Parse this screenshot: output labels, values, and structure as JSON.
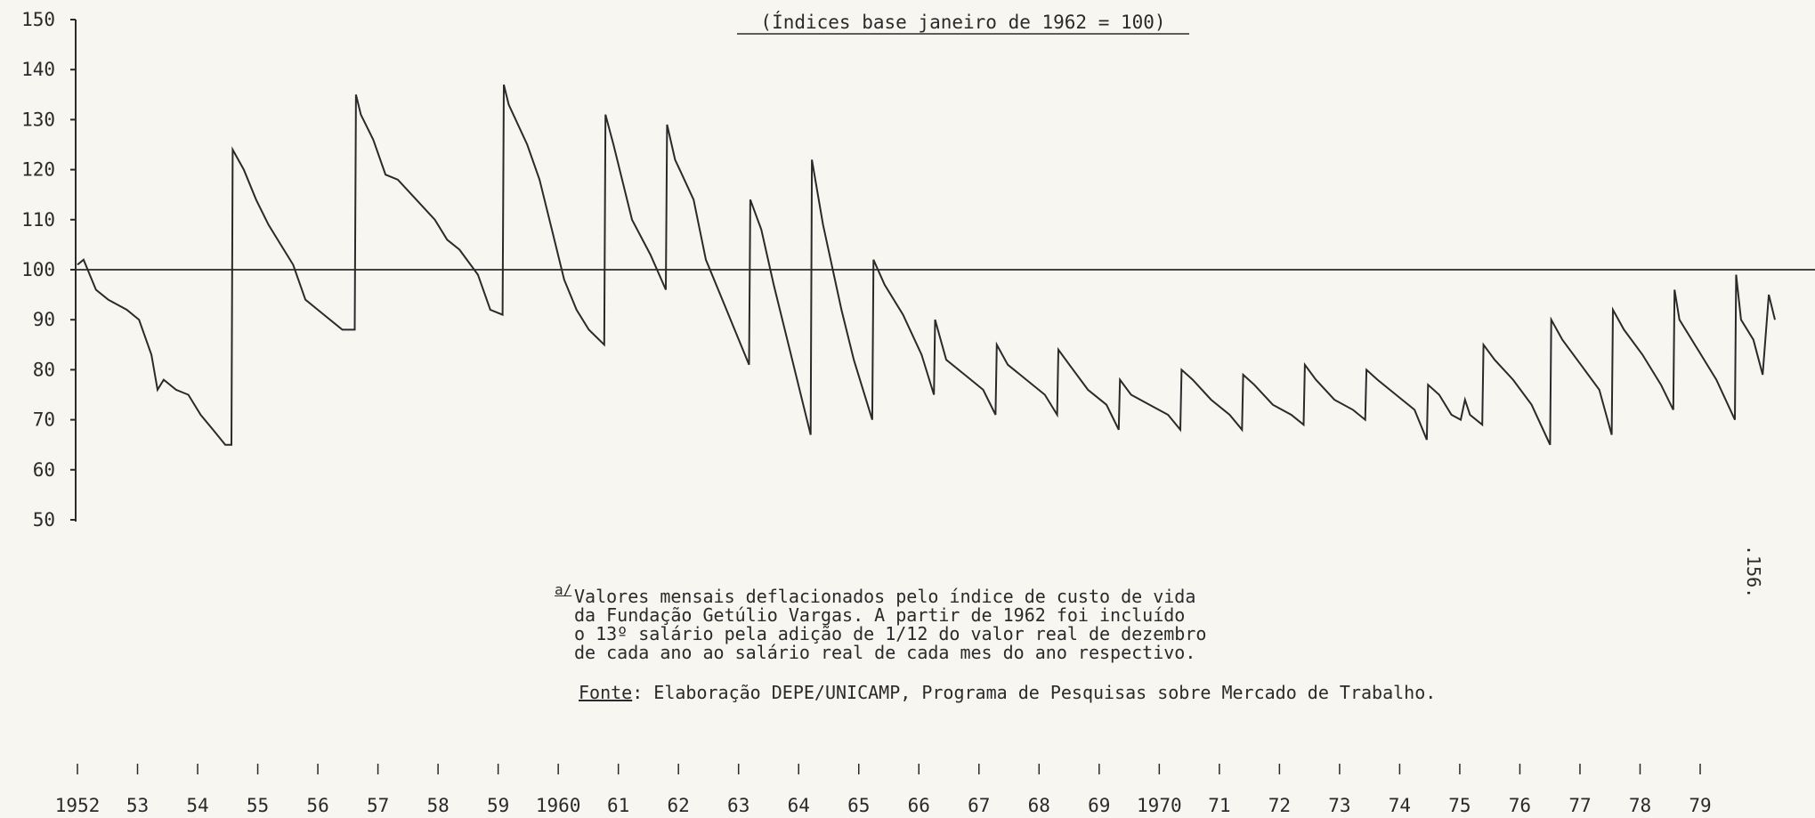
{
  "title": "(Índices base janeiro de 1962 = 100)",
  "note": {
    "marker": "a/",
    "lines": [
      "Valores mensais deflacionados pelo índice de custo de vida",
      "da Fundação Getúlio Vargas. A partir de 1962 foi incluído",
      "o 13º salário pela adição de 1/12 do valor real de dezembro",
      "de cada ano ao salário real de cada mes do ano respectivo."
    ]
  },
  "source": {
    "label": "Fonte",
    "text": ": Elaboração DEPE/UNICAMP, Programa de Pesquisas sobre Mercado de Trabalho."
  },
  "page_number": ".156.",
  "colors": {
    "line": "#2a2a2a",
    "background": "#f7f6f1"
  },
  "chart_data": {
    "type": "line",
    "title": "(Índices base janeiro de 1962 = 100)",
    "xlabel": "",
    "ylabel": "",
    "ylim": [
      50,
      150
    ],
    "yticks": [
      150,
      140,
      130,
      120,
      110,
      100,
      90,
      80,
      70,
      60,
      50
    ],
    "reference_line": 100,
    "xlim": [
      1952,
      1980.2
    ],
    "xtick_labels": [
      "1952",
      "53",
      "54",
      "55",
      "56",
      "57",
      "58",
      "59",
      "1960",
      "61",
      "62",
      "63",
      "64",
      "65",
      "66",
      "67",
      "68",
      "69",
      "1970",
      "71",
      "72",
      "73",
      "74",
      "75",
      "76",
      "77",
      "78",
      "79"
    ],
    "grid": false,
    "series": [
      {
        "x": [
          1952.0,
          1952.1,
          1952.3,
          1952.5,
          1952.8,
          1953.0,
          1953.2,
          1953.3,
          1953.4,
          1953.6,
          1953.8,
          1954.0,
          1954.2,
          1954.4,
          1954.5,
          1954.52,
          1954.7,
          1954.9,
          1955.1,
          1955.3,
          1955.5,
          1955.7,
          1955.9,
          1956.0,
          1956.3,
          1956.5,
          1956.52,
          1956.6,
          1956.8,
          1957.0,
          1957.2,
          1957.5,
          1957.8,
          1958.0,
          1958.2,
          1958.5,
          1958.7,
          1958.9,
          1958.92,
          1959.0,
          1959.3,
          1959.5,
          1959.7,
          1959.9,
          1960.1,
          1960.3,
          1960.55,
          1960.57,
          1960.7,
          1961.0,
          1961.3,
          1961.55,
          1961.57,
          1961.7,
          1962.0,
          1962.2,
          1962.5,
          1962.9,
          1962.92,
          1963.1,
          1963.3,
          1963.6,
          1963.9,
          1963.92,
          1964.1,
          1964.4,
          1964.6,
          1964.9,
          1964.92,
          1965.1,
          1965.4,
          1965.7,
          1965.9,
          1965.92,
          1966.1,
          1966.4,
          1966.7,
          1966.9,
          1966.92,
          1967.1,
          1967.4,
          1967.7,
          1967.9,
          1967.92,
          1968.1,
          1968.4,
          1968.7,
          1968.9,
          1968.92,
          1969.1,
          1969.4,
          1969.7,
          1969.9,
          1969.92,
          1970.1,
          1970.4,
          1970.7,
          1970.9,
          1970.92,
          1971.1,
          1971.4,
          1971.7,
          1971.9,
          1971.92,
          1972.1,
          1972.4,
          1972.7,
          1972.9,
          1972.92,
          1973.1,
          1973.4,
          1973.7,
          1973.9,
          1973.92,
          1974.1,
          1974.3,
          1974.45,
          1974.52,
          1974.6,
          1974.8,
          1974.82,
          1975.0,
          1975.3,
          1975.6,
          1975.9,
          1975.92,
          1976.1,
          1976.4,
          1976.7,
          1976.9,
          1976.92,
          1977.1,
          1977.4,
          1977.7,
          1977.9,
          1977.92,
          1978.0,
          1978.3,
          1978.6,
          1978.9,
          1978.92,
          1979.0,
          1979.2,
          1979.35,
          1979.45,
          1979.55
        ],
        "values": [
          101,
          102,
          96,
          94,
          92,
          90,
          83,
          76,
          78,
          76,
          75,
          71,
          68,
          65,
          65,
          124,
          120,
          114,
          109,
          105,
          101,
          94,
          92,
          91,
          88,
          88,
          135,
          131,
          126,
          119,
          118,
          114,
          110,
          106,
          104,
          99,
          92,
          91,
          137,
          133,
          125,
          118,
          108,
          98,
          92,
          88,
          85,
          131,
          125,
          110,
          103,
          96,
          129,
          122,
          114,
          102,
          93,
          81,
          114,
          108,
          97,
          82,
          67,
          122,
          109,
          92,
          82,
          70,
          102,
          97,
          91,
          83,
          75,
          90,
          82,
          79,
          76,
          71,
          85,
          81,
          78,
          75,
          71,
          84,
          81,
          76,
          73,
          68,
          78,
          75,
          73,
          71,
          68,
          80,
          78,
          74,
          71,
          68,
          79,
          77,
          73,
          71,
          69,
          81,
          78,
          74,
          72,
          70,
          80,
          78,
          75,
          72,
          66,
          77,
          75,
          71,
          70,
          74,
          71,
          69,
          85,
          82,
          78,
          73,
          65,
          90,
          86,
          81,
          76,
          67,
          92,
          88,
          83,
          77,
          72,
          96,
          90,
          84,
          78,
          70,
          99,
          90,
          86,
          79,
          95,
          90
        ]
      }
    ]
  }
}
